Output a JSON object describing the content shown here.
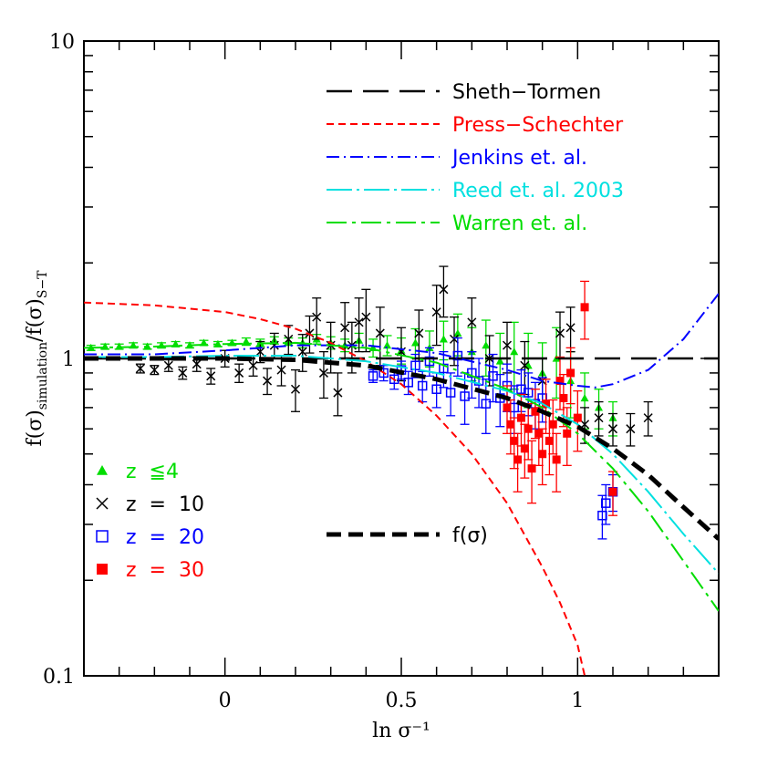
{
  "chart_data": {
    "type": "scatter",
    "title": "",
    "xlabel": "ln σ⁻¹",
    "ylabel_main": "f(σ)",
    "ylabel_sub": "simulation",
    "ylabel_main2": "/f(σ)",
    "ylabel_sub2": "S−T",
    "xlim": [
      -0.4,
      1.4
    ],
    "ylim": [
      0.1,
      10
    ],
    "y_scale": "log",
    "x_ticks": [
      {
        "value": 0,
        "label": "0"
      },
      {
        "value": 0.5,
        "label": "0.5"
      },
      {
        "value": 1,
        "label": "1"
      }
    ],
    "y_ticks": [
      {
        "value": 0.1,
        "label": "0.1"
      },
      {
        "value": 1,
        "label": "1"
      },
      {
        "value": 10,
        "label": "10"
      }
    ],
    "lines": [
      {
        "name": "Sheth−Tormen",
        "color": "#000000",
        "dash": "28,12",
        "width": 2.5,
        "x": [
          -0.4,
          1.4
        ],
        "y": [
          1.0,
          1.0
        ]
      },
      {
        "name": "Press−Schechter",
        "color": "#ff0000",
        "dash": "8,5",
        "width": 2,
        "x": [
          -0.4,
          -0.2,
          0,
          0.1,
          0.2,
          0.3,
          0.4,
          0.5,
          0.6,
          0.7,
          0.8,
          0.9,
          0.95,
          1.0,
          1.02
        ],
        "y": [
          1.5,
          1.47,
          1.4,
          1.33,
          1.24,
          1.12,
          0.98,
          0.83,
          0.66,
          0.5,
          0.35,
          0.22,
          0.17,
          0.125,
          0.1
        ]
      },
      {
        "name": "Jenkins et. al.",
        "color": "#0000ff",
        "dash": "14,5,2,5",
        "width": 2,
        "x": [
          -0.4,
          -0.2,
          0,
          0.2,
          0.4,
          0.6,
          0.8,
          0.9,
          1.0,
          1.05,
          1.1,
          1.2,
          1.3,
          1.4
        ],
        "y": [
          1.03,
          1.03,
          1.06,
          1.1,
          1.1,
          1.04,
          0.92,
          0.85,
          0.82,
          0.81,
          0.83,
          0.92,
          1.15,
          1.6
        ]
      },
      {
        "name": "Reed et. al. 2003",
        "color": "#00e0e0",
        "dash": "28,5,3,5",
        "width": 2,
        "x": [
          -0.4,
          -0.2,
          0,
          0.2,
          0.4,
          0.6,
          0.8,
          0.9,
          1.0,
          1.1,
          1.2,
          1.3,
          1.4
        ],
        "y": [
          1.01,
          1.01,
          1.02,
          1.02,
          0.98,
          0.9,
          0.79,
          0.72,
          0.62,
          0.5,
          0.38,
          0.28,
          0.21
        ]
      },
      {
        "name": "Warren et. al.",
        "color": "#00dd00",
        "dash": "22,6,4,6",
        "width": 2,
        "x": [
          -0.4,
          -0.2,
          0,
          0.2,
          0.4,
          0.6,
          0.8,
          0.9,
          1.0,
          1.1,
          1.2,
          1.3,
          1.4
        ],
        "y": [
          1.08,
          1.09,
          1.11,
          1.12,
          1.08,
          0.97,
          0.8,
          0.7,
          0.58,
          0.45,
          0.33,
          0.23,
          0.16
        ]
      },
      {
        "name": "f(σ)",
        "color": "#000000",
        "dash": "16,8",
        "width": 5,
        "x": [
          -0.4,
          -0.2,
          0,
          0.2,
          0.4,
          0.6,
          0.8,
          0.9,
          1.0,
          1.1,
          1.2,
          1.3,
          1.4
        ],
        "y": [
          1.0,
          1.0,
          1.0,
          0.99,
          0.95,
          0.86,
          0.75,
          0.68,
          0.61,
          0.52,
          0.43,
          0.34,
          0.27
        ]
      }
    ],
    "legend_lines": [
      {
        "label": "Sheth−Tormen",
        "color": "#000000"
      },
      {
        "label": "Press−Schechter",
        "color": "#ff0000"
      },
      {
        "label": "Jenkins et. al.",
        "color": "#0000ff"
      },
      {
        "label": "Reed et. al. 2003",
        "color": "#00e0e0"
      },
      {
        "label": "Warren et. al.",
        "color": "#00dd00"
      }
    ],
    "legend_fsigma": {
      "label": "f(σ)",
      "color": "#000000"
    },
    "legend_markers": [
      {
        "label": "z  ≦4",
        "marker": "triangle",
        "color": "#00dd00"
      },
      {
        "label": "z  =  10",
        "marker": "cross",
        "color": "#000000"
      },
      {
        "label": "z  =  20",
        "marker": "open-square",
        "color": "#0000ff"
      },
      {
        "label": "z  =  30",
        "marker": "filled-square",
        "color": "#ff0000"
      }
    ],
    "series": [
      {
        "name": "z ≦4",
        "marker": "triangle",
        "color": "#00dd00",
        "x": [
          -0.38,
          -0.34,
          -0.3,
          -0.26,
          -0.22,
          -0.18,
          -0.14,
          -0.1,
          -0.06,
          -0.02,
          0.02,
          0.06,
          0.1,
          0.14,
          0.18,
          0.22,
          0.26,
          0.3,
          0.34,
          0.38,
          0.42,
          0.46,
          0.5,
          0.54,
          0.58,
          0.62,
          0.66,
          0.7,
          0.74,
          0.78,
          0.82,
          0.86,
          0.9,
          0.94,
          0.98,
          1.02,
          1.06,
          1.1
        ],
        "y": [
          1.08,
          1.09,
          1.09,
          1.1,
          1.09,
          1.1,
          1.11,
          1.1,
          1.12,
          1.11,
          1.12,
          1.13,
          1.12,
          1.14,
          1.13,
          1.12,
          1.15,
          1.12,
          1.1,
          1.14,
          1.08,
          1.1,
          1.06,
          1.12,
          1.08,
          1.15,
          1.2,
          1.05,
          1.1,
          0.98,
          1.05,
          0.95,
          0.9,
          1.0,
          0.85,
          0.75,
          0.7,
          0.65
        ],
        "err": [
          0.02,
          0.02,
          0.02,
          0.02,
          0.02,
          0.02,
          0.02,
          0.02,
          0.02,
          0.02,
          0.02,
          0.03,
          0.03,
          0.03,
          0.03,
          0.04,
          0.04,
          0.05,
          0.05,
          0.06,
          0.07,
          0.08,
          0.1,
          0.12,
          0.14,
          0.16,
          0.18,
          0.2,
          0.22,
          0.22,
          0.25,
          0.25,
          0.22,
          0.25,
          0.2,
          0.15,
          0.1,
          0.08
        ]
      },
      {
        "name": "z = 10",
        "marker": "cross",
        "color": "#000000",
        "x": [
          -0.24,
          -0.2,
          -0.16,
          -0.12,
          -0.08,
          -0.04,
          0.0,
          0.04,
          0.08,
          0.1,
          0.12,
          0.14,
          0.16,
          0.18,
          0.2,
          0.22,
          0.24,
          0.26,
          0.28,
          0.3,
          0.32,
          0.34,
          0.36,
          0.38,
          0.4,
          0.44,
          0.5,
          0.55,
          0.6,
          0.62,
          0.65,
          0.7,
          0.75,
          0.8,
          0.85,
          0.9,
          0.95,
          0.98,
          1.02,
          1.06,
          1.1,
          1.15,
          1.2
        ],
        "y": [
          0.93,
          0.92,
          0.95,
          0.9,
          0.96,
          0.88,
          1.0,
          0.9,
          0.95,
          1.05,
          0.85,
          1.1,
          0.92,
          1.15,
          0.8,
          1.05,
          1.2,
          1.35,
          0.9,
          1.1,
          0.78,
          1.25,
          1.1,
          1.3,
          1.35,
          1.2,
          1.05,
          1.2,
          1.4,
          1.65,
          1.15,
          1.3,
          1.0,
          1.1,
          0.95,
          0.85,
          1.2,
          1.25,
          0.62,
          0.65,
          0.6,
          0.6,
          0.65
        ],
        "err": [
          0.03,
          0.03,
          0.04,
          0.04,
          0.05,
          0.05,
          0.06,
          0.06,
          0.07,
          0.08,
          0.08,
          0.1,
          0.1,
          0.12,
          0.12,
          0.14,
          0.16,
          0.2,
          0.15,
          0.2,
          0.12,
          0.25,
          0.2,
          0.25,
          0.3,
          0.25,
          0.2,
          0.22,
          0.3,
          0.3,
          0.2,
          0.25,
          0.18,
          0.2,
          0.18,
          0.15,
          0.2,
          0.2,
          0.08,
          0.08,
          0.07,
          0.07,
          0.08
        ]
      },
      {
        "name": "z = 20",
        "marker": "open-square",
        "color": "#0000ff",
        "x": [
          0.42,
          0.45,
          0.48,
          0.5,
          0.52,
          0.54,
          0.56,
          0.58,
          0.6,
          0.62,
          0.64,
          0.66,
          0.68,
          0.7,
          0.72,
          0.74,
          0.76,
          0.78,
          0.8,
          0.82,
          0.84,
          0.86,
          0.88,
          0.9,
          1.07,
          1.08,
          1.1
        ],
        "y": [
          0.88,
          0.9,
          0.86,
          0.92,
          0.84,
          0.95,
          0.82,
          0.98,
          0.8,
          0.93,
          0.78,
          1.02,
          0.76,
          0.9,
          0.85,
          0.72,
          0.88,
          0.75,
          0.82,
          0.7,
          0.8,
          0.78,
          0.72,
          0.75,
          0.32,
          0.35,
          0.38
        ],
        "err": [
          0.04,
          0.05,
          0.06,
          0.06,
          0.07,
          0.08,
          0.09,
          0.1,
          0.1,
          0.12,
          0.12,
          0.14,
          0.14,
          0.15,
          0.15,
          0.14,
          0.15,
          0.14,
          0.14,
          0.12,
          0.12,
          0.12,
          0.12,
          0.12,
          0.05,
          0.05,
          0.05
        ]
      },
      {
        "name": "z = 30",
        "marker": "filled-square",
        "color": "#ff0000",
        "x": [
          0.8,
          0.81,
          0.82,
          0.83,
          0.84,
          0.85,
          0.86,
          0.87,
          0.88,
          0.89,
          0.9,
          0.91,
          0.92,
          0.93,
          0.94,
          0.95,
          0.96,
          0.97,
          0.98,
          1.0,
          1.02,
          1.1
        ],
        "y": [
          0.7,
          0.62,
          0.55,
          0.48,
          0.65,
          0.52,
          0.6,
          0.45,
          0.68,
          0.58,
          0.5,
          0.72,
          0.55,
          0.62,
          0.48,
          0.85,
          0.75,
          0.58,
          0.9,
          0.65,
          1.45,
          0.38
        ],
        "err": [
          0.12,
          0.12,
          0.1,
          0.1,
          0.12,
          0.1,
          0.12,
          0.1,
          0.12,
          0.12,
          0.1,
          0.14,
          0.12,
          0.12,
          0.1,
          0.16,
          0.14,
          0.12,
          0.18,
          0.14,
          0.3,
          0.06
        ]
      }
    ],
    "colors": {
      "axes": "#000000",
      "background": "#ffffff"
    }
  }
}
